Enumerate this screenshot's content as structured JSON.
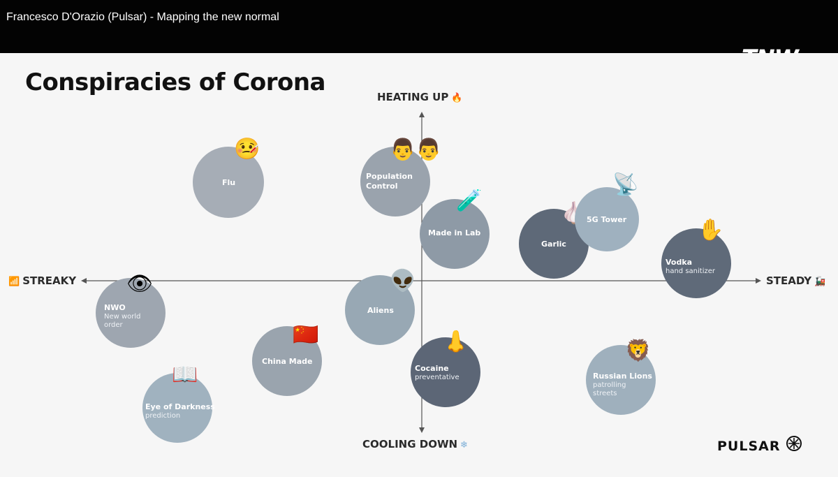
{
  "video": {
    "title": "Francesco D'Orazio (Pulsar) - Mapping the new normal",
    "logo": "TNW"
  },
  "slide": {
    "title": "Conspiracies of Corona",
    "axes": {
      "top": "HEATING UP",
      "bottom": "COOLING DOWN",
      "left": "STREAKY",
      "right": "STEADY"
    },
    "brand": "PULSAR",
    "bubbles": [
      {
        "id": "flu",
        "label": "Flu",
        "sub": "",
        "color": "#a6adb6",
        "icon": "thermometer-face-icon",
        "glyph": "🤒"
      },
      {
        "id": "population-control",
        "label": "Population\nControl",
        "sub": "",
        "color": "#9aa3ad",
        "icon": "people-icon",
        "glyph": "👨‍👨"
      },
      {
        "id": "made-in-lab",
        "label": "Made in Lab",
        "sub": "",
        "color": "#8e9aa6",
        "icon": "test-tube-icon",
        "glyph": "🧪"
      },
      {
        "id": "garlic",
        "label": "Garlic",
        "sub": "",
        "color": "#5e6978",
        "icon": "garlic-icon",
        "glyph": "🧄"
      },
      {
        "id": "5g-tower",
        "label": "5G Tower",
        "sub": "",
        "color": "#9fb1bf",
        "icon": "satellite-dish-icon",
        "glyph": "📡"
      },
      {
        "id": "vodka",
        "label": "Vodka",
        "sub": "hand sanitizer",
        "color": "#5f6a79",
        "icon": "raised-hand-icon",
        "glyph": "✋"
      },
      {
        "id": "nwo",
        "label": "NWO",
        "sub": "New world\norder",
        "color": "#9ea6b0",
        "icon": "eye-icon",
        "glyph": "👁"
      },
      {
        "id": "aliens",
        "label": "Aliens",
        "sub": "",
        "color": "#98a8b4",
        "icon": "alien-icon",
        "glyph": "👽"
      },
      {
        "id": "china-made",
        "label": "China Made",
        "sub": "",
        "color": "#9aa4ae",
        "icon": "china-flag-icon",
        "glyph": "🇨🇳"
      },
      {
        "id": "cocaine",
        "label": "Cocaine",
        "sub": "preventative",
        "color": "#5c6676",
        "icon": "nose-icon",
        "glyph": "👃"
      },
      {
        "id": "russian-lions",
        "label": "Russian Lions",
        "sub": "patrolling\nstreets",
        "color": "#9fb0bd",
        "icon": "lion-icon",
        "glyph": "🦁"
      },
      {
        "id": "eye-of-darkness",
        "label": "Eye of Darkness",
        "sub": "prediction",
        "color": "#a0b2bf",
        "icon": "book-icon",
        "glyph": "📖"
      }
    ]
  }
}
